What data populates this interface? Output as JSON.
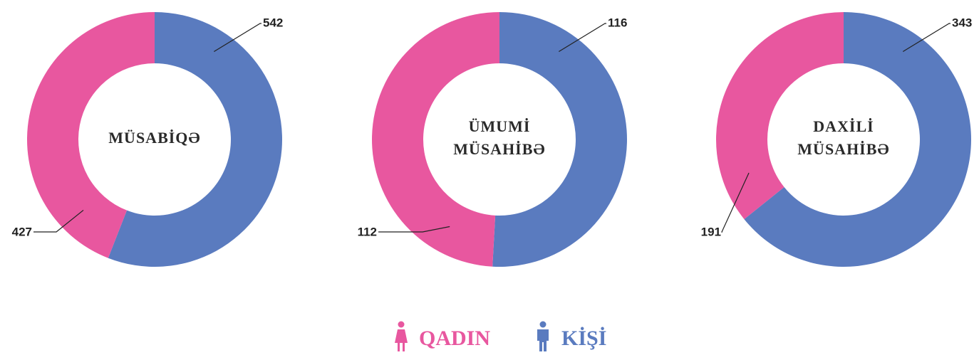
{
  "chart_data": [
    {
      "type": "donut",
      "title": [
        "MÜSABİQƏ"
      ],
      "values": [
        427,
        542
      ]
    },
    {
      "type": "donut",
      "title": [
        "ÜMUMİ",
        "MÜSAHİBƏ"
      ],
      "values": [
        112,
        116
      ]
    },
    {
      "type": "donut",
      "title": [
        "DAXİLİ",
        "MÜSAHİBƏ"
      ],
      "values": [
        191,
        343
      ]
    }
  ],
  "legend": [
    {
      "name": "QADIN",
      "color": "#e8579f"
    },
    {
      "name": "KİŞİ",
      "color": "#5a7bbf"
    }
  ]
}
